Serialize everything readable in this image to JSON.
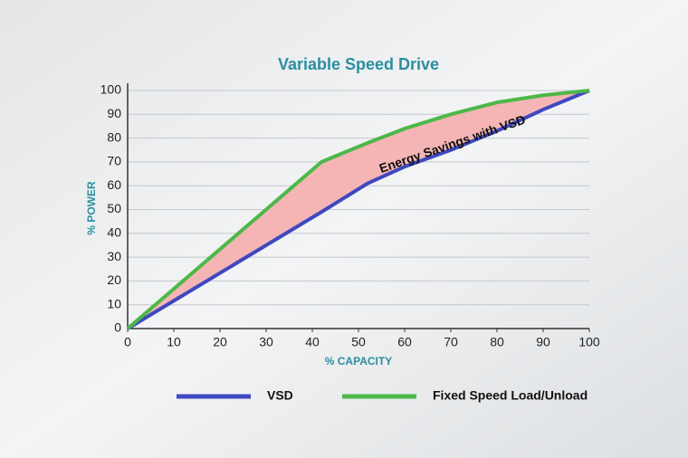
{
  "chart_data": {
    "type": "line",
    "title": "Variable Speed Drive",
    "x_label": "% CAPACITY",
    "y_label": "% POWER",
    "x": [
      0,
      42,
      52,
      60,
      70,
      80,
      90,
      100
    ],
    "series": [
      {
        "name": "VSD",
        "color": "#3f48c0",
        "values": [
          0,
          49,
          61,
          68,
          75,
          83,
          92,
          100
        ]
      },
      {
        "name": "Fixed Speed Load/Unload",
        "color": "#4cb848",
        "values": [
          0,
          70,
          78,
          84,
          90,
          95,
          98,
          100
        ]
      }
    ],
    "fill_between_color": "#f5b5b5",
    "annotation": "Energy Savings with VSD",
    "xlim": [
      0,
      100
    ],
    "xticks": [
      0,
      10,
      20,
      30,
      40,
      50,
      60,
      70,
      80,
      90,
      100
    ],
    "ylim": [
      0,
      100
    ],
    "yticks": [
      0,
      10,
      20,
      30,
      40,
      50,
      60,
      70,
      80,
      90,
      100
    ],
    "grid": true
  }
}
